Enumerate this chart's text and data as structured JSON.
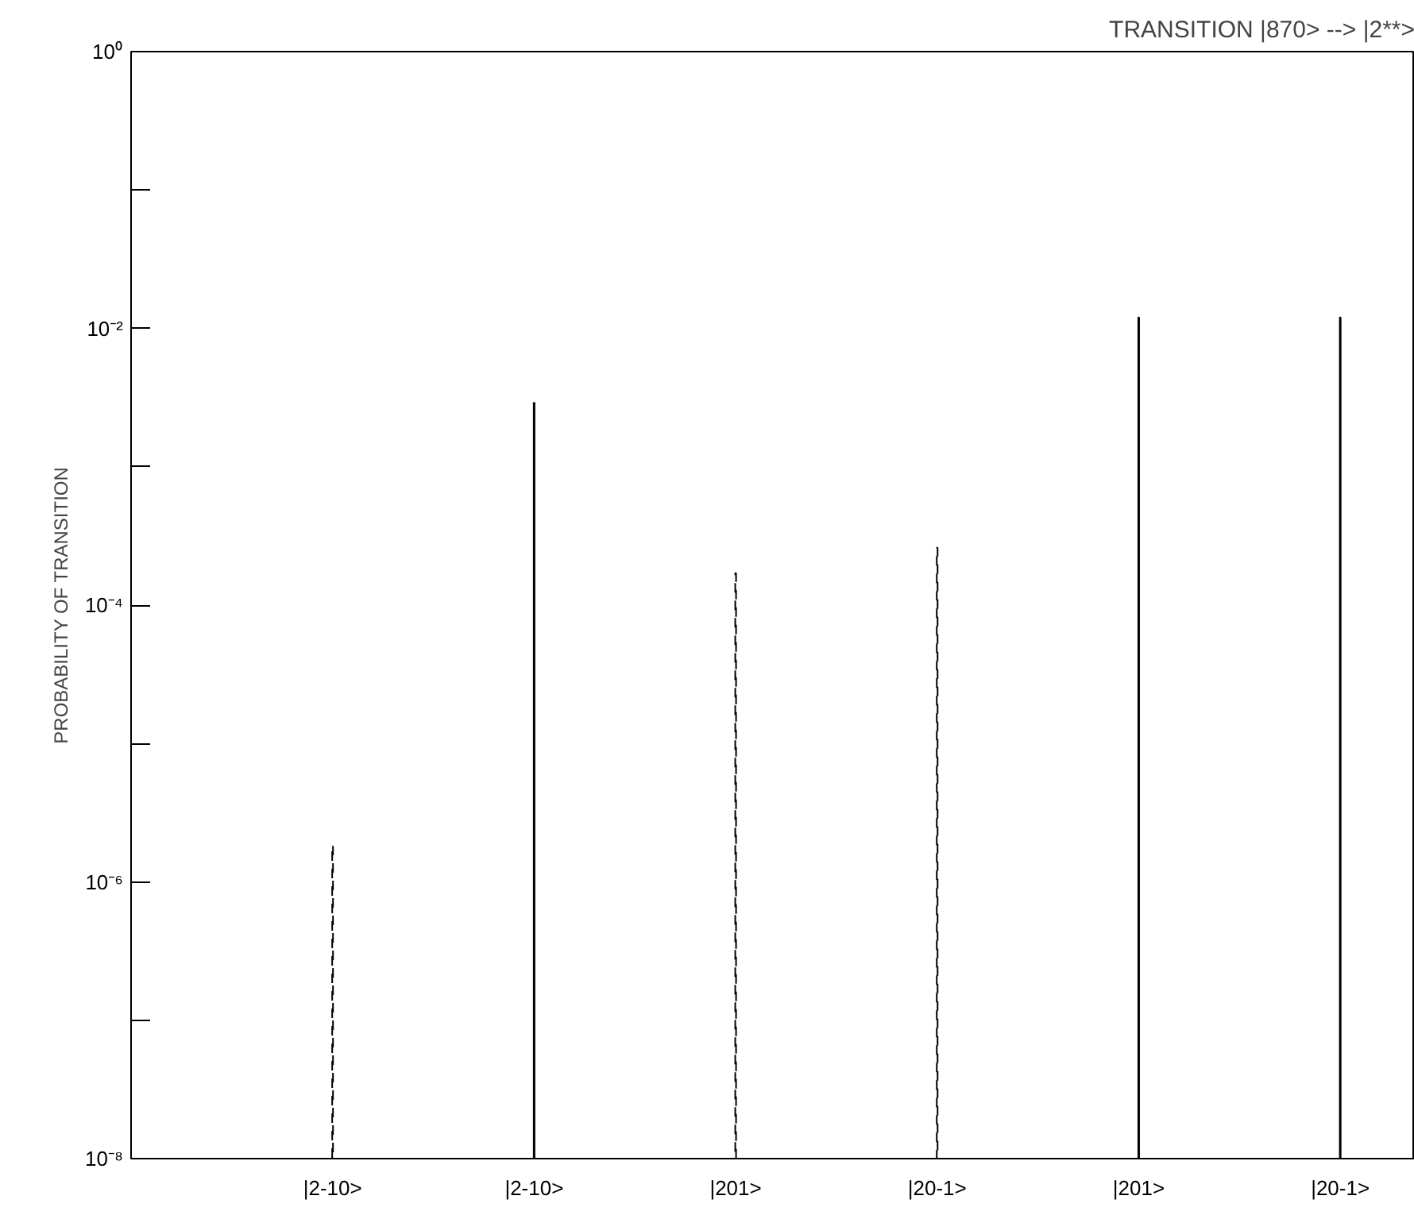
{
  "chart_data": {
    "type": "bar",
    "title": "TRANSITION |870> --> |2**>",
    "ylabel": "PROBABILITY OF TRANSITION",
    "categories": [
      "|2-10>",
      "|2-10>",
      "|201>",
      "|20-1>",
      "|201>",
      "|20-1>"
    ],
    "series": [
      {
        "color": "#000000",
        "line_style": "dashed",
        "values": [
          1.8e-06,
          null,
          0.00017,
          0.00026,
          null,
          null
        ]
      },
      {
        "color": "#000000",
        "line_style": "solid",
        "values": [
          null,
          0.0029,
          null,
          null,
          0.012,
          0.012
        ]
      }
    ],
    "log": true,
    "ylim": [
      1e-08,
      1
    ],
    "yticks": [
      {
        "value": 1,
        "label": "10⁰"
      },
      {
        "value": 0.1,
        "label": null
      },
      {
        "value": 0.01,
        "label": "10⁻²"
      },
      {
        "value": 0.001,
        "label": null
      },
      {
        "value": 0.0001,
        "label": "10⁻⁴"
      },
      {
        "value": 1e-05,
        "label": null
      },
      {
        "value": 1e-06,
        "label": "10⁻⁶"
      },
      {
        "value": 1e-07,
        "label": null
      },
      {
        "value": 1e-08,
        "label": "10⁻⁸"
      }
    ],
    "grid": false
  }
}
